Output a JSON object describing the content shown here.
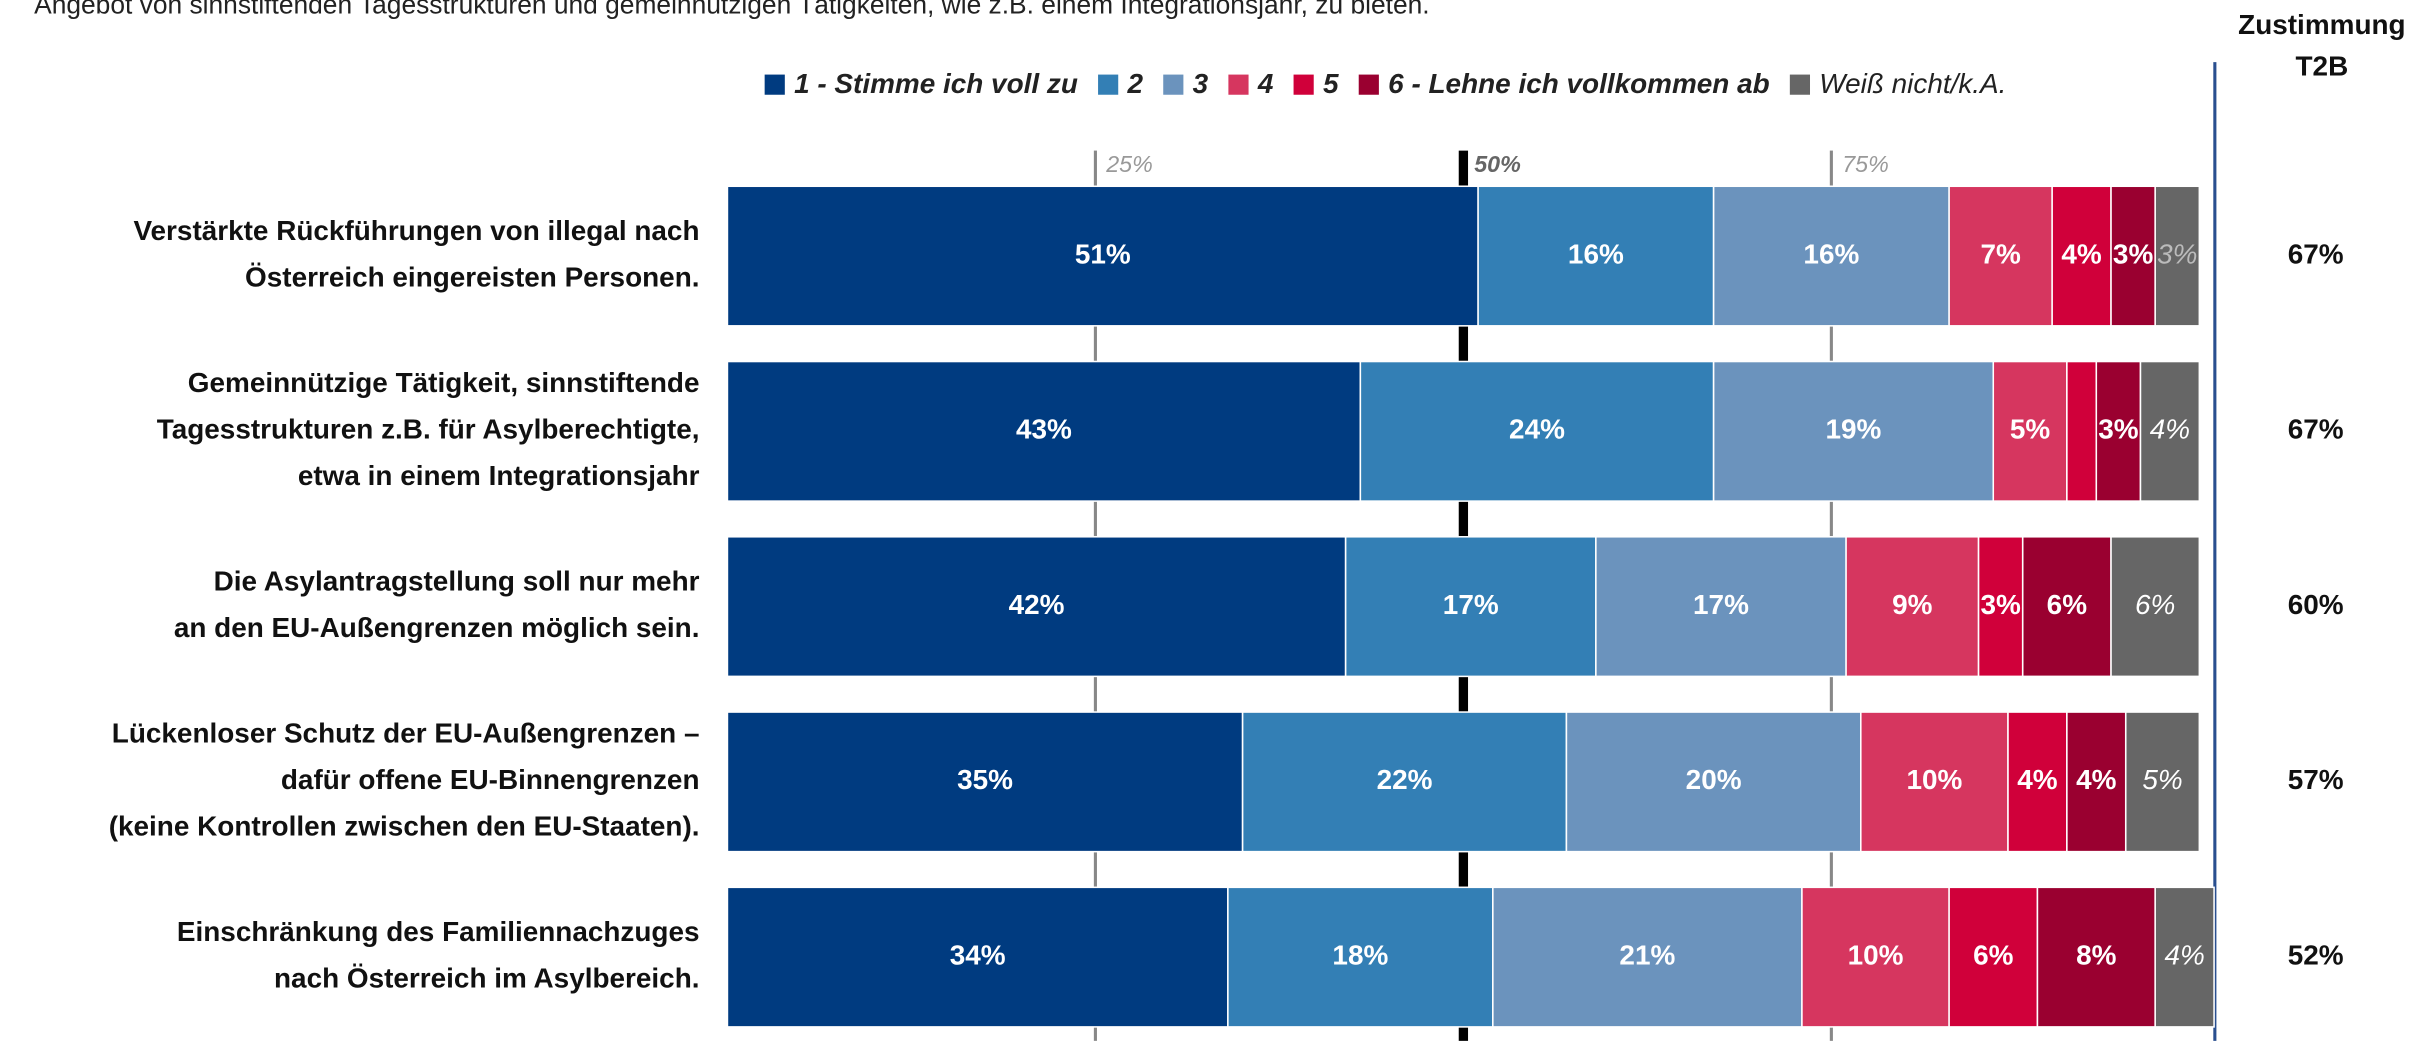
{
  "chart_data": {
    "type": "stacked-bar",
    "subtitle": "Angebot von sinnstiftenden Tagesstrukturen und gemeinnützigen Tätigkeiten, wie z.B. einem Integrationsjahr, zu bieten.",
    "categories": [
      [
        "Verstärkte Rückführungen von illegal nach",
        "Österreich eingereisten Personen."
      ],
      [
        "Gemeinnützige Tätigkeit, sinnstiftende",
        "Tagesstrukturen z.B. für Asylberechtigte,",
        "etwa in einem Integrationsjahr"
      ],
      [
        "Die Asylantragstellung soll nur mehr",
        "an den EU-Außengrenzen möglich sein."
      ],
      [
        "Lückenloser Schutz der EU-Außengrenzen –",
        "dafür offene EU-Binnengrenzen",
        "(keine Kontrollen zwischen den EU-Staaten)."
      ],
      [
        "Einschränkung des Familiennachzuges",
        "nach Österreich im Asylbereich."
      ]
    ],
    "series": [
      {
        "name": "1 - Stimme ich voll zu",
        "color": "#003b80",
        "values": [
          51,
          43,
          42,
          35,
          34
        ],
        "value_labels": [
          "51%",
          "43%",
          "42%",
          "35%",
          "34%"
        ]
      },
      {
        "name": "2",
        "color": "#337fb5",
        "values": [
          16,
          24,
          17,
          22,
          18
        ],
        "value_labels": [
          "16%",
          "24%",
          "17%",
          "22%",
          "18%"
        ]
      },
      {
        "name": "3",
        "color": "#6b93bd",
        "values": [
          16,
          19,
          17,
          20,
          21
        ],
        "value_labels": [
          "16%",
          "19%",
          "17%",
          "20%",
          "21%"
        ]
      },
      {
        "name": "4",
        "color": "#d6365f",
        "values": [
          7,
          5,
          9,
          10,
          10
        ],
        "value_labels": [
          "7%",
          "5%",
          "9%",
          "10%",
          "10%"
        ]
      },
      {
        "name": "5",
        "color": "#d0003a",
        "values": [
          4,
          2,
          3,
          4,
          6
        ],
        "value_labels": [
          "4%",
          null,
          "3%",
          "4%",
          "6%"
        ]
      },
      {
        "name": "6 - Lehne ich vollkommen ab",
        "color": "#9a0030",
        "values": [
          3,
          3,
          6,
          4,
          8
        ],
        "value_labels": [
          "3%",
          "3%",
          "6%",
          "4%",
          "8%"
        ]
      },
      {
        "name": "Weiß nicht/k.A.",
        "color": "#666666",
        "values": [
          3,
          4,
          6,
          5,
          4
        ],
        "value_labels": [
          "3%",
          "4%",
          "6%",
          "5%",
          "4%"
        ]
      }
    ],
    "xlim": [
      0,
      100
    ],
    "xticks": [
      {
        "value": 25,
        "label": "25%"
      },
      {
        "value": 50,
        "label": "50%"
      },
      {
        "value": 75,
        "label": "75%"
      }
    ],
    "t2b": {
      "title": [
        "Zustimmung",
        "T2B"
      ],
      "values": [
        67,
        67,
        60,
        57,
        52
      ],
      "value_labels": [
        "67%",
        "67%",
        "60%",
        "57%",
        "52%"
      ]
    }
  }
}
